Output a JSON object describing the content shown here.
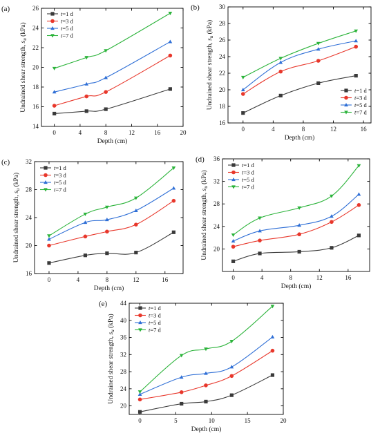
{
  "chart_data": [
    {
      "type": "line",
      "panel_label": "(a)",
      "xlabel": "Depth (cm)",
      "ylabel_prefix": "Undrained shear strength, ",
      "ylabel_symbol": "s",
      "ylabel_sub": "u",
      "ylabel_suffix": " (kPa)",
      "xlim": [
        -2,
        20
      ],
      "ylim": [
        14,
        26
      ],
      "xticks": [
        0,
        4,
        8,
        12,
        16,
        20
      ],
      "yticks": [
        14,
        16,
        18,
        20,
        22,
        24,
        26
      ],
      "legend_position": "top-left",
      "x": [
        0,
        5,
        8,
        18
      ],
      "series": [
        {
          "name": "t=1 d",
          "var": "t",
          "rest": "=1 d",
          "values": [
            15.3,
            15.55,
            15.75,
            17.8
          ]
        },
        {
          "name": "t=3 d",
          "var": "t",
          "rest": "=3 d",
          "values": [
            16.1,
            17.05,
            17.5,
            21.2
          ]
        },
        {
          "name": "t=5 d",
          "var": "t",
          "rest": "=5 d",
          "values": [
            17.5,
            18.3,
            18.95,
            22.6
          ]
        },
        {
          "name": "t=7 d",
          "var": "t",
          "rest": "=7 d",
          "values": [
            19.9,
            21.0,
            21.7,
            25.5
          ]
        }
      ]
    },
    {
      "type": "line",
      "panel_label": "(b)",
      "xlabel": "Depth (cm)",
      "ylabel_prefix": "Undrained shear strength, ",
      "ylabel_symbol": "s",
      "ylabel_sub": "u",
      "ylabel_suffix": " (kPa)",
      "xlim": [
        -2,
        17
      ],
      "ylim": [
        16,
        30
      ],
      "xticks": [
        0,
        4,
        8,
        12,
        16
      ],
      "yticks": [
        16,
        18,
        20,
        22,
        24,
        26,
        28,
        30
      ],
      "legend_position": "bottom-right",
      "x": [
        0,
        5,
        10,
        15
      ],
      "series": [
        {
          "name": "t=1 d",
          "var": "t",
          "rest": "=1 d",
          "values": [
            17.2,
            19.3,
            20.8,
            21.7
          ]
        },
        {
          "name": "t=3 d",
          "var": "t",
          "rest": "=3 d",
          "values": [
            19.5,
            22.2,
            23.5,
            25.2
          ]
        },
        {
          "name": "t=5 d",
          "var": "t",
          "rest": "=5 d",
          "values": [
            20.0,
            23.3,
            24.9,
            25.9
          ]
        },
        {
          "name": "t=7 d",
          "var": "t",
          "rest": "=7 d",
          "values": [
            21.5,
            23.8,
            25.6,
            27.1
          ]
        }
      ]
    },
    {
      "type": "line",
      "panel_label": "(c)",
      "xlabel": "Depth (cm)",
      "ylabel_prefix": "Undrained shear strength, ",
      "ylabel_symbol": "s",
      "ylabel_sub": "u",
      "ylabel_suffix": " (kPa)",
      "xlim": [
        -2,
        18.5
      ],
      "ylim": [
        16,
        32
      ],
      "xticks": [
        0,
        4,
        8,
        12,
        16
      ],
      "yticks": [
        16,
        20,
        24,
        28,
        32
      ],
      "legend_position": "top-left",
      "x": [
        0,
        5,
        8,
        12,
        17.2
      ],
      "series": [
        {
          "name": "t=1 d",
          "var": "t",
          "rest": "=1 d",
          "values": [
            17.5,
            18.6,
            18.9,
            19.0,
            21.9
          ]
        },
        {
          "name": "t=3 d",
          "var": "t",
          "rest": "=3 d",
          "values": [
            20.0,
            21.3,
            22.0,
            23.0,
            26.4
          ]
        },
        {
          "name": "t=5 d",
          "var": "t",
          "rest": "=5 d",
          "values": [
            20.9,
            23.3,
            23.7,
            25.0,
            28.2
          ]
        },
        {
          "name": "t=7 d",
          "var": "t",
          "rest": "=7 d",
          "values": [
            21.4,
            24.5,
            25.5,
            26.8,
            31.1
          ]
        }
      ]
    },
    {
      "type": "line",
      "panel_label": "(d)",
      "xlabel": "Depth (cm)",
      "ylabel_prefix": "Undrained shear strength, ",
      "ylabel_symbol": "s",
      "ylabel_sub": "u",
      "ylabel_suffix": " (kPa)",
      "xlim": [
        -1.5,
        19
      ],
      "ylim": [
        16,
        36
      ],
      "xticks": [
        0,
        4,
        8,
        12,
        16
      ],
      "yticks": [
        20,
        24,
        28,
        32,
        36
      ],
      "legend_position": "top-left",
      "x": [
        0,
        3.7,
        9.2,
        13.7,
        17.5
      ],
      "series": [
        {
          "name": "t=1 d",
          "var": "t",
          "rest": "=1 d",
          "values": [
            17.8,
            19.2,
            19.5,
            20.2,
            22.4
          ]
        },
        {
          "name": "t=3 d",
          "var": "t",
          "rest": "=3 d",
          "values": [
            20.4,
            21.5,
            22.6,
            24.8,
            27.8
          ]
        },
        {
          "name": "t=5 d",
          "var": "t",
          "rest": "=5 d",
          "values": [
            21.4,
            23.2,
            24.2,
            25.8,
            29.7
          ]
        },
        {
          "name": "t=7 d",
          "var": "t",
          "rest": "=7 d",
          "values": [
            22.5,
            25.5,
            27.3,
            29.4,
            34.8
          ]
        }
      ]
    },
    {
      "type": "line",
      "panel_label": "(e)",
      "xlabel": "Depth (cm)",
      "ylabel_prefix": "Undrained shear strength, ",
      "ylabel_symbol": "s",
      "ylabel_sub": "u",
      "ylabel_suffix": " (kPa)",
      "xlim": [
        -1.5,
        20
      ],
      "ylim": [
        18,
        44
      ],
      "xticks": [
        0,
        5,
        10,
        15,
        20
      ],
      "yticks": [
        20,
        24,
        28,
        32,
        36,
        40,
        44
      ],
      "legend_position": "top-left",
      "x": [
        0,
        5.8,
        9.2,
        12.8,
        18.5
      ],
      "series": [
        {
          "name": "t=1 d",
          "var": "t",
          "rest": "=1 d",
          "values": [
            18.6,
            20.5,
            21.0,
            22.5,
            27.2
          ]
        },
        {
          "name": "t=3 d",
          "var": "t",
          "rest": "=3 d",
          "values": [
            21.5,
            23.2,
            24.8,
            27.0,
            32.9
          ]
        },
        {
          "name": "t=5 d",
          "var": "t",
          "rest": "=5 d",
          "values": [
            22.7,
            26.7,
            27.6,
            29.1,
            36.1
          ]
        },
        {
          "name": "t=7 d",
          "var": "t",
          "rest": "=7 d",
          "values": [
            23.3,
            31.8,
            33.3,
            35.1,
            43.3
          ]
        }
      ]
    }
  ],
  "series_style": {
    "colors": [
      "#3a3a3a",
      "#e8372b",
      "#2f6fd6",
      "#2bb33a"
    ],
    "markers": [
      "square",
      "circle",
      "triangle-up",
      "triangle-down"
    ]
  }
}
